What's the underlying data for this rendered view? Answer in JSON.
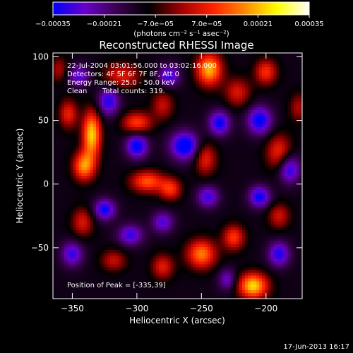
{
  "chart_data": {
    "type": "heatmap",
    "title": "Reconstructed RHESSI Image",
    "xlabel": "Heliocentric X (arcsec)",
    "ylabel": "Heliocentric Y (arcsec)",
    "xlim": [
      -365,
      -172
    ],
    "ylim": [
      -90,
      103
    ],
    "x_ticks": [
      -350,
      -300,
      -250,
      -200
    ],
    "x_tick_labels": [
      "−350",
      "−300",
      "−250",
      "−200"
    ],
    "y_ticks": [
      -50,
      0,
      50,
      100
    ],
    "y_tick_labels": [
      "−50",
      "0",
      "50",
      "100"
    ],
    "colorbar": {
      "range": [
        -0.00035,
        0.00035
      ],
      "ticks": [
        -0.00035,
        -0.00021,
        -7e-05,
        7e-05,
        0.00021,
        0.00035
      ],
      "tick_labels": [
        "−0.00035",
        "−0.00021",
        "−7.0e−05",
        "7.0e−05",
        "0.00021",
        "0.00035"
      ],
      "unit_label": "(photons cm⁻² s⁻¹ asec⁻²)",
      "colormap": [
        "#0000ff",
        "#6a00c8",
        "#3a0050",
        "#000000",
        "#a00000",
        "#ff2200",
        "#ff8a00",
        "#ffff00",
        "#ffffff"
      ]
    },
    "annotations": {
      "time_range": "22-Jul-2004 03:01:56.000 to 03:02:16.000",
      "detectors": "Detectors: 4F 5F 6F 7F 8F, Att 0",
      "energy_range": "Energy Range: 25.0 - 50.0 keV",
      "clean": "Clean",
      "total_counts": "Total counts: 319.",
      "peak": "Position of Peak = [-335,39]"
    },
    "peak_position": [
      -335,
      39
    ],
    "sources": [
      {
        "x": -335,
        "y": 39,
        "amp": 0.00034,
        "sx": 5,
        "sy": 13
      },
      {
        "x": -341,
        "y": 14,
        "amp": 0.00028,
        "sx": 6,
        "sy": 8
      },
      {
        "x": -353,
        "y": 55,
        "amp": 0.00018,
        "sx": 5,
        "sy": 8
      },
      {
        "x": -300,
        "y": 48,
        "amp": 0.00022,
        "sx": 8,
        "sy": 6
      },
      {
        "x": -312,
        "y": 85,
        "amp": 0.00017,
        "sx": 10,
        "sy": 7
      },
      {
        "x": -280,
        "y": 62,
        "amp": 0.00014,
        "sx": 6,
        "sy": 8
      },
      {
        "x": -244,
        "y": 90,
        "amp": 0.00032,
        "sx": 7,
        "sy": 9
      },
      {
        "x": -222,
        "y": 72,
        "amp": 0.00016,
        "sx": 7,
        "sy": 8
      },
      {
        "x": -200,
        "y": 88,
        "amp": 0.0002,
        "sx": 6,
        "sy": 7
      },
      {
        "x": -292,
        "y": 2,
        "amp": 0.00024,
        "sx": 9,
        "sy": 6
      },
      {
        "x": -274,
        "y": -4,
        "amp": 0.0002,
        "sx": 6,
        "sy": 6
      },
      {
        "x": -247,
        "y": 20,
        "amp": 0.00018,
        "sx": 6,
        "sy": 9
      },
      {
        "x": -190,
        "y": 25,
        "amp": 0.00019,
        "sx": 7,
        "sy": 10
      },
      {
        "x": -250,
        "y": -55,
        "amp": 0.00027,
        "sx": 8,
        "sy": 8
      },
      {
        "x": -225,
        "y": -42,
        "amp": 0.00021,
        "sx": 6,
        "sy": 7
      },
      {
        "x": -210,
        "y": -80,
        "amp": 0.00035,
        "sx": 8,
        "sy": 7
      },
      {
        "x": -280,
        "y": -65,
        "amp": 0.00017,
        "sx": 6,
        "sy": 7
      },
      {
        "x": -342,
        "y": -30,
        "amp": 0.00016,
        "sx": 6,
        "sy": 8
      },
      {
        "x": -190,
        "y": -25,
        "amp": 0.00015,
        "sx": 6,
        "sy": 7
      },
      {
        "x": -318,
        "y": -60,
        "amp": 0.00014,
        "sx": 7,
        "sy": 6
      },
      {
        "x": -175,
        "y": 60,
        "amp": 0.00012,
        "sx": 5,
        "sy": 8
      },
      {
        "x": -360,
        "y": 90,
        "amp": 0.00012,
        "sx": 5,
        "sy": 7
      },
      {
        "x": -300,
        "y": 30,
        "amp": -0.00026,
        "sx": 6,
        "sy": 7
      },
      {
        "x": -322,
        "y": 65,
        "amp": -0.00022,
        "sx": 6,
        "sy": 8
      },
      {
        "x": -263,
        "y": 30,
        "amp": -0.00028,
        "sx": 8,
        "sy": 8
      },
      {
        "x": -236,
        "y": 48,
        "amp": -0.00024,
        "sx": 6,
        "sy": 7
      },
      {
        "x": -205,
        "y": 50,
        "amp": -0.00025,
        "sx": 7,
        "sy": 8
      },
      {
        "x": -182,
        "y": 12,
        "amp": -0.00023,
        "sx": 6,
        "sy": 8
      },
      {
        "x": -205,
        "y": -10,
        "amp": -0.00024,
        "sx": 6,
        "sy": 6
      },
      {
        "x": -190,
        "y": -55,
        "amp": -0.00022,
        "sx": 6,
        "sy": 7
      },
      {
        "x": -245,
        "y": -10,
        "amp": -0.0002,
        "sx": 6,
        "sy": 6
      },
      {
        "x": -325,
        "y": -20,
        "amp": -0.00024,
        "sx": 6,
        "sy": 6
      },
      {
        "x": -305,
        "y": -40,
        "amp": -0.0002,
        "sx": 7,
        "sy": 6
      },
      {
        "x": -350,
        "y": -55,
        "amp": -0.0002,
        "sx": 6,
        "sy": 7
      },
      {
        "x": -275,
        "y": 85,
        "amp": -0.0002,
        "sx": 6,
        "sy": 6
      },
      {
        "x": -345,
        "y": 85,
        "amp": -0.00018,
        "sx": 6,
        "sy": 6
      },
      {
        "x": -280,
        "y": -30,
        "amp": -0.00018,
        "sx": 6,
        "sy": 6
      },
      {
        "x": -230,
        "y": -75,
        "amp": -0.00016,
        "sx": 5,
        "sy": 6
      }
    ]
  },
  "footer": {
    "timestamp": "17-Jun-2013 16:17"
  }
}
